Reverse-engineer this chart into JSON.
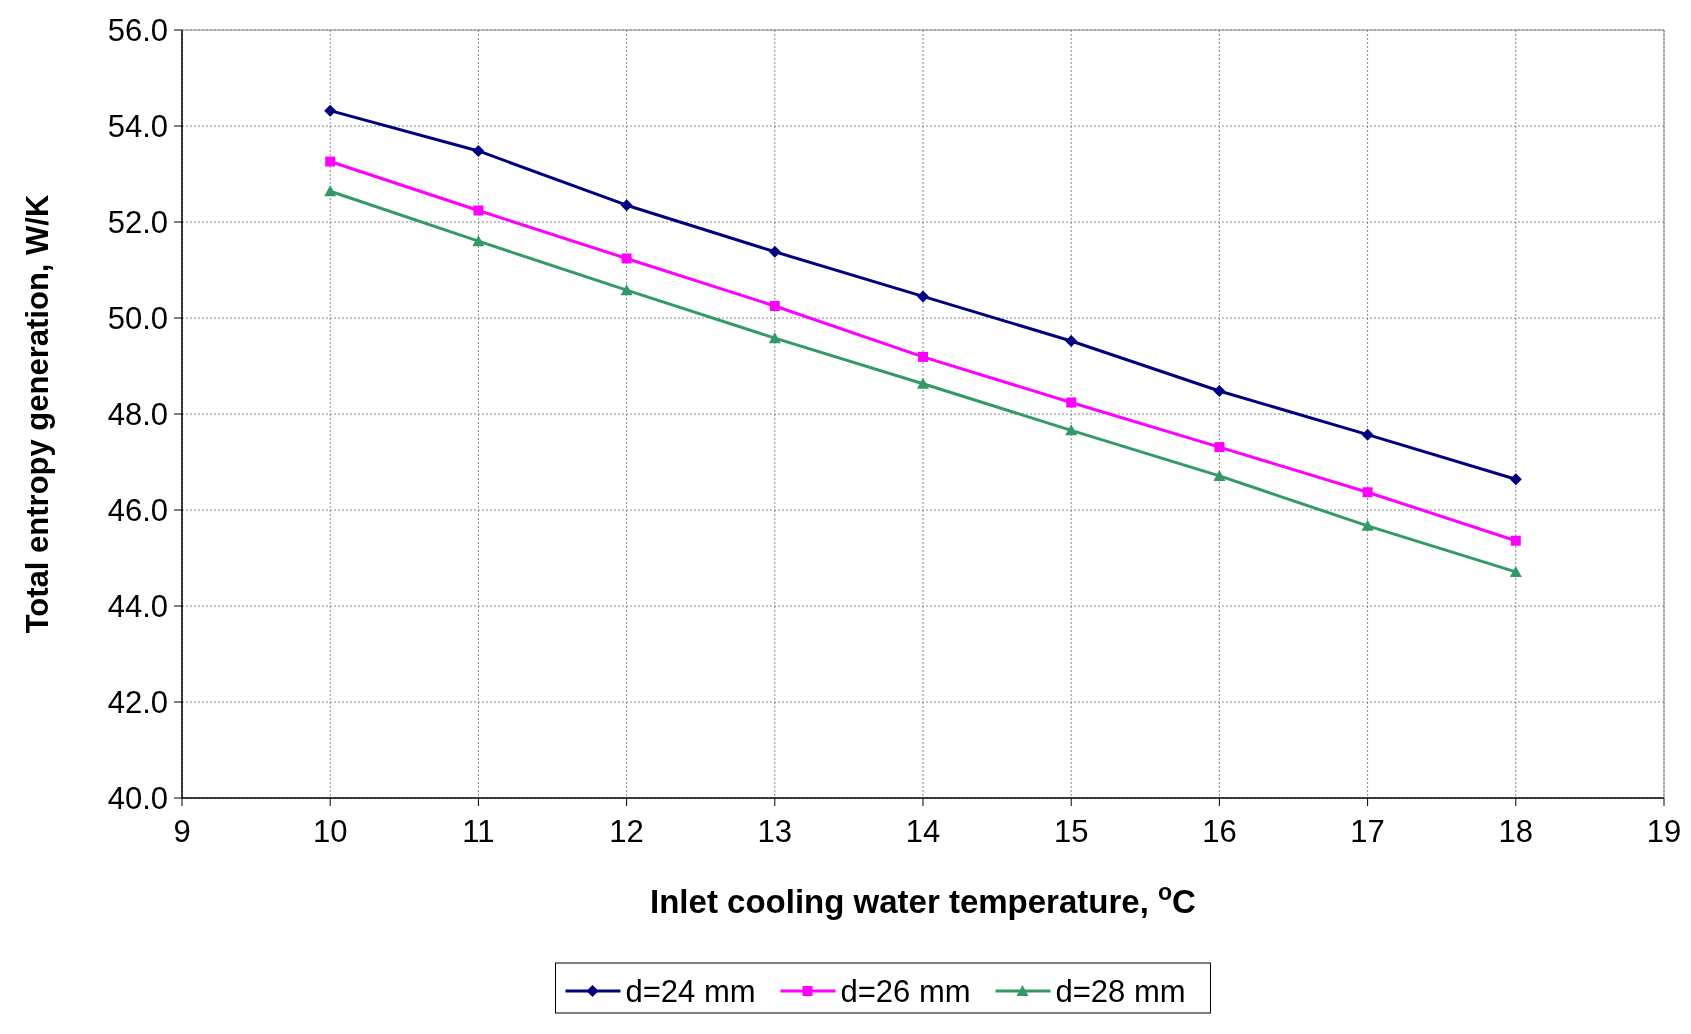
{
  "chart_data": {
    "type": "line",
    "xlabel": "Inlet cooling water temperature, $^{o}$C",
    "ylabel": "Total entropy generation, W/K",
    "x": [
      10,
      11,
      12,
      13,
      14,
      15,
      16,
      17,
      18
    ],
    "series": [
      {
        "name": "d=24 mm",
        "color": "#000080",
        "marker": "diamond",
        "values": [
          54.32,
          53.48,
          52.35,
          51.38,
          50.45,
          49.52,
          48.48,
          47.57,
          46.64
        ]
      },
      {
        "name": "d=26 mm",
        "color": "#ff00ff",
        "marker": "square",
        "values": [
          53.26,
          52.24,
          51.24,
          50.25,
          49.19,
          48.24,
          47.31,
          46.37,
          45.36
        ]
      },
      {
        "name": "d=28 mm",
        "color": "#339966",
        "marker": "triangle",
        "values": [
          52.64,
          51.6,
          50.58,
          49.58,
          48.63,
          47.66,
          46.71,
          45.67,
          44.71
        ]
      }
    ],
    "xlim": [
      9,
      19
    ],
    "xticks": [
      9,
      10,
      11,
      12,
      13,
      14,
      15,
      16,
      17,
      18,
      19
    ],
    "ylim": [
      40,
      56
    ],
    "yticks": [
      {
        "value": 40,
        "label": "40.0"
      },
      {
        "value": 42,
        "label": "42.0"
      },
      {
        "value": 44,
        "label": "44.0"
      },
      {
        "value": 46,
        "label": "46.0"
      },
      {
        "value": 48,
        "label": "48.0"
      },
      {
        "value": 50,
        "label": "50.0"
      },
      {
        "value": 52,
        "label": "52.0"
      },
      {
        "value": 54,
        "label": "54.0"
      },
      {
        "value": 56,
        "label": "56.0"
      }
    ],
    "grid": true,
    "line_style": "solid",
    "legend": "bottom"
  }
}
